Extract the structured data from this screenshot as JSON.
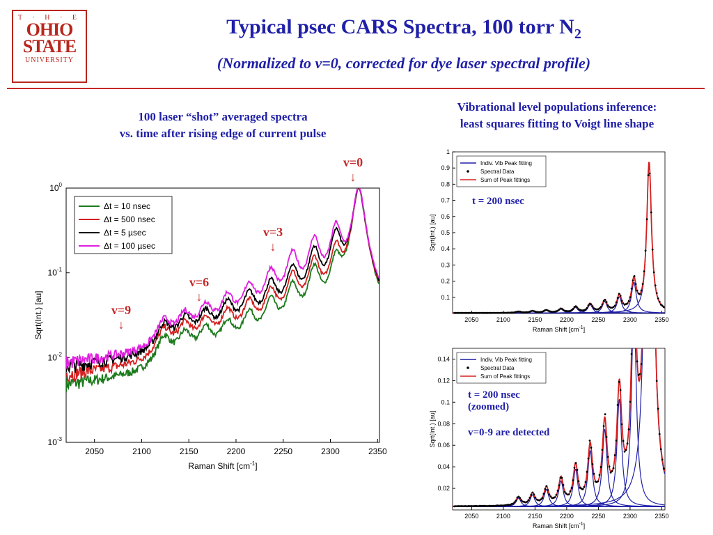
{
  "logo": {
    "the": "T · H · E",
    "line1": "OHIO",
    "line2": "STATE",
    "line3": "UNIVERSITY"
  },
  "title": {
    "main": "Typical psec CARS Spectra, 100 torr N",
    "sub": "2"
  },
  "subtitle": "(Normalized to v=0, corrected for dye laser spectral profile)",
  "left_caption": {
    "line1": "100 laser “shot” averaged spectra",
    "line2": "vs. time after rising edge of current pulse"
  },
  "right_caption": {
    "line1": "Vibrational level populations inference:",
    "line2": "least squares fitting to Voigt line shape"
  },
  "annotations": {
    "v0": "v=0",
    "v3": "v=3",
    "v6": "v=6",
    "v9": "v=9",
    "arrow": "↓",
    "t200": "t = 200 nsec",
    "t200z1": "t = 200 nsec",
    "t200z2": "(zoomed)",
    "detected": "v=0-9 are detected"
  },
  "chart_data": [
    {
      "type": "line",
      "xlabel": "Raman Shift [cm-1]",
      "ylabel": "Sqrt(Int.) [au]",
      "yscale": "log",
      "xlim": [
        2020,
        2352
      ],
      "ylim": [
        0.001,
        1
      ],
      "xticks": [
        2050,
        2100,
        2150,
        2200,
        2250,
        2300,
        2350
      ],
      "yticks": [
        "10^-3",
        "10^-2",
        "10^-1",
        "10^0"
      ],
      "legend_position": "top-left",
      "peaks_x": [
        2330,
        2306,
        2283,
        2260,
        2237,
        2214,
        2191,
        2168,
        2146,
        2124
      ],
      "series": [
        {
          "name": "Δt = 10 nsec",
          "color": "#1b7a1b",
          "peak_values": [
            1.0,
            0.12,
            0.095,
            0.055,
            0.034,
            0.022,
            0.016,
            0.013,
            0.011,
            0.01
          ],
          "baseline": 0.006
        },
        {
          "name": "Δt = 500 nsec",
          "color": "#d42020",
          "peak_values": [
            1.0,
            0.17,
            0.12,
            0.075,
            0.045,
            0.03,
            0.022,
            0.017,
            0.014,
            0.012
          ],
          "baseline": 0.008
        },
        {
          "name": "Δt = 5 µsec",
          "color": "#000000",
          "peak_values": [
            1.0,
            0.26,
            0.16,
            0.09,
            0.055,
            0.038,
            0.028,
            0.02,
            0.016,
            0.013
          ],
          "baseline": 0.01
        },
        {
          "name": "Δt = 100 µsec",
          "color": "#e01ee0",
          "peak_values": [
            1.0,
            0.32,
            0.22,
            0.14,
            0.08,
            0.05,
            0.035,
            0.025,
            0.018,
            0.014
          ],
          "baseline": 0.011
        }
      ]
    },
    {
      "type": "line",
      "xlabel": "Raman Shift [cm-1]",
      "ylabel": "Sqrt(Int.) [au]",
      "xlim": [
        2020,
        2355
      ],
      "ylim": [
        0,
        1
      ],
      "xticks": [
        2050,
        2100,
        2150,
        2200,
        2250,
        2300,
        2350
      ],
      "yticks": [
        0.1,
        0.2,
        0.3,
        0.4,
        0.5,
        0.6,
        0.7,
        0.8,
        0.9,
        1
      ],
      "legend_position": "top-left",
      "peaks_x": [
        2330,
        2306,
        2283,
        2260,
        2237,
        2214,
        2191,
        2168,
        2146,
        2124
      ],
      "peak_values": [
        0.93,
        0.19,
        0.1,
        0.072,
        0.052,
        0.035,
        0.024,
        0.016,
        0.011,
        0.008
      ],
      "series": [
        {
          "name": "Indiv. Vib Peak fitting",
          "color": "#1f1fa8"
        },
        {
          "name": "Spectral Data",
          "color": "#000000"
        },
        {
          "name": "Sum of Peak fittings",
          "color": "#d42020"
        }
      ]
    },
    {
      "type": "line",
      "xlabel": "Raman Shift [cm-1]",
      "ylabel": "Sqrt(Int.) [au]",
      "xlim": [
        2020,
        2355
      ],
      "ylim": [
        0,
        0.15
      ],
      "xticks": [
        2050,
        2100,
        2150,
        2200,
        2250,
        2300,
        2350
      ],
      "yticks": [
        0.02,
        0.04,
        0.06,
        0.08,
        0.1,
        0.12,
        0.14
      ],
      "legend_position": "top-left",
      "peaks_x": [
        2330,
        2306,
        2283,
        2260,
        2237,
        2214,
        2191,
        2168,
        2146,
        2124
      ],
      "peak_values": [
        0.93,
        0.19,
        0.1,
        0.072,
        0.052,
        0.035,
        0.024,
        0.016,
        0.011,
        0.008
      ],
      "series": [
        {
          "name": "Indiv. Vib Peak fitting",
          "color": "#1f1fa8"
        },
        {
          "name": "Spectral Data",
          "color": "#000000"
        },
        {
          "name": "Sum of Peak fittings",
          "color": "#d42020"
        }
      ]
    }
  ]
}
